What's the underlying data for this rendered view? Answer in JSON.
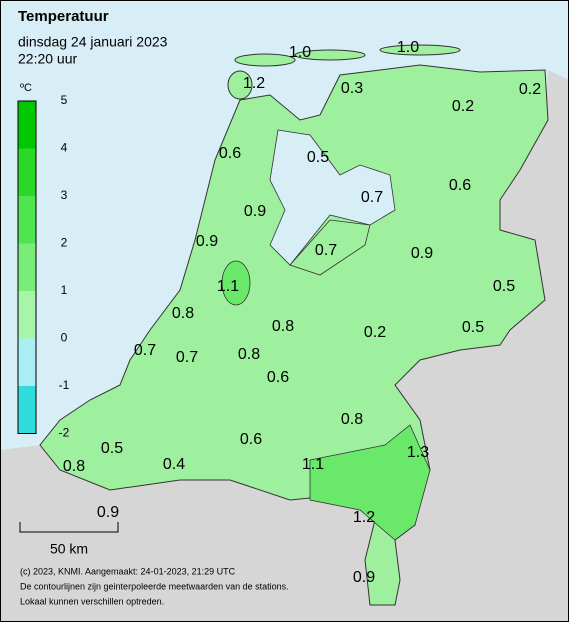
{
  "header": {
    "title": "Temperatuur",
    "date": "dinsdag 24 januari 2023",
    "time": "22:20 uur"
  },
  "legend": {
    "unit": "ºC",
    "ticks": [
      "5",
      "4",
      "3",
      "2",
      "1",
      "0",
      "-1",
      "-2"
    ],
    "colors": [
      "#00c800",
      "#2ad82a",
      "#50e450",
      "#78ee78",
      "#a8f4a8",
      "#a8eef2",
      "#30dcdc"
    ]
  },
  "map": {
    "labels": [
      "1.0",
      "1.0",
      "1.2",
      "0.3",
      "0.2",
      "0.2",
      "0.6",
      "0.5",
      "0.7",
      "0.6",
      "0.9",
      "0.9",
      "0.7",
      "0.9",
      "1.1",
      "0.5",
      "0.8",
      "0.8",
      "0.2",
      "0.5",
      "0.7",
      "0.7",
      "0.8",
      "0.6",
      "0.8",
      "0.6",
      "0.5",
      "1.3",
      "0.8",
      "0.4",
      "1.1",
      "1.2",
      "0.9",
      "0.9"
    ]
  },
  "scale": {
    "label": "50 km"
  },
  "footer": {
    "lines": [
      "(c) 2023, KNMI. Aangemaakt: 24-01-2023, 21:29 UTC",
      "De contourlijnen zijn geinterpoleerde meetwaarden van de stations.",
      "Lokaal kunnen verschillen optreden."
    ]
  }
}
